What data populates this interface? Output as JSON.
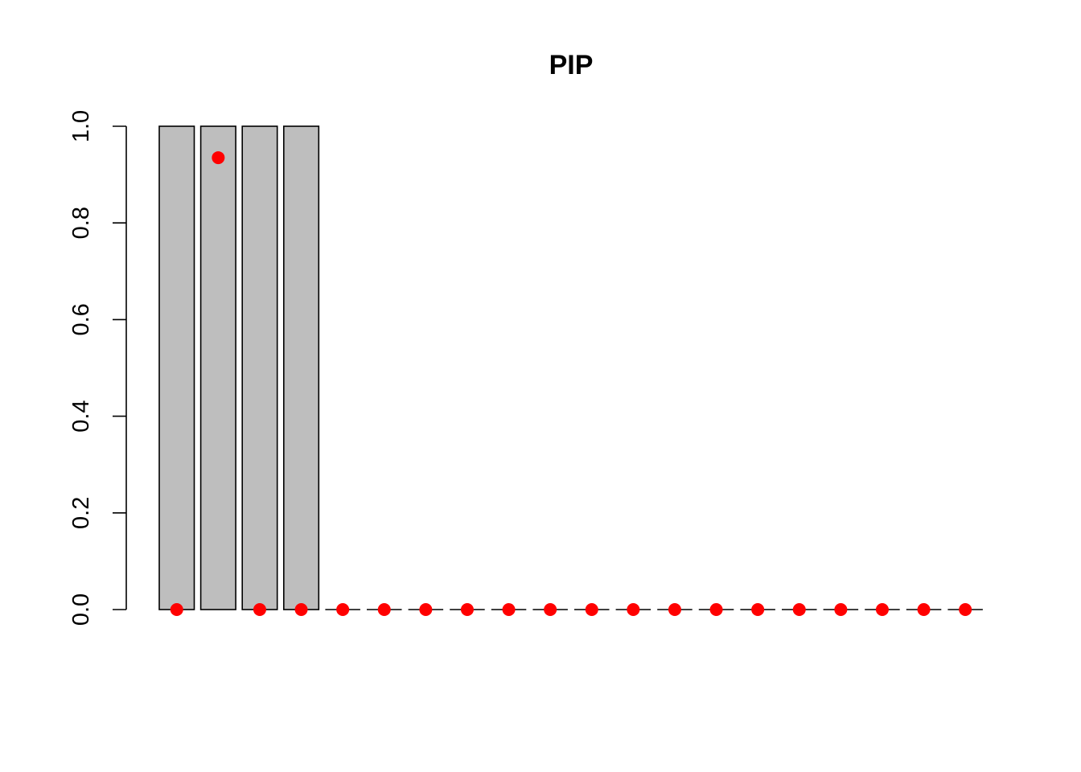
{
  "chart_data": {
    "type": "bar",
    "title": "PIP",
    "xlabel": "",
    "ylabel": "",
    "ylim": [
      0,
      1
    ],
    "y_ticks": [
      "0.0",
      "0.2",
      "0.4",
      "0.6",
      "0.8",
      "1.0"
    ],
    "y_tick_values": [
      0,
      0.2,
      0.4,
      0.6,
      0.8,
      1.0
    ],
    "bar_color": "#bebebe",
    "point_color": "#ff0000",
    "series": [
      {
        "kind": "bar",
        "values": [
          1,
          1,
          1,
          1,
          0,
          0,
          0,
          0,
          0,
          0,
          0,
          0,
          0,
          0,
          0,
          0,
          0,
          0,
          0,
          0
        ]
      },
      {
        "kind": "points",
        "values": [
          0,
          0.935,
          0,
          0,
          0,
          0,
          0,
          0,
          0,
          0,
          0,
          0,
          0,
          0,
          0,
          0,
          0,
          0,
          0,
          0
        ]
      }
    ]
  }
}
